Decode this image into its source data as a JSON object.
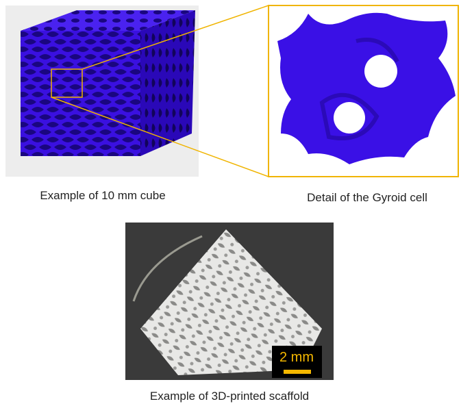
{
  "panels": {
    "cube": {
      "caption": "Example of 10 mm cube"
    },
    "gyroid": {
      "caption": "Detail of the Gyroid cell"
    },
    "photo": {
      "caption": "Example of 3D-printed scaffold",
      "scale_bar": "2 mm"
    }
  }
}
